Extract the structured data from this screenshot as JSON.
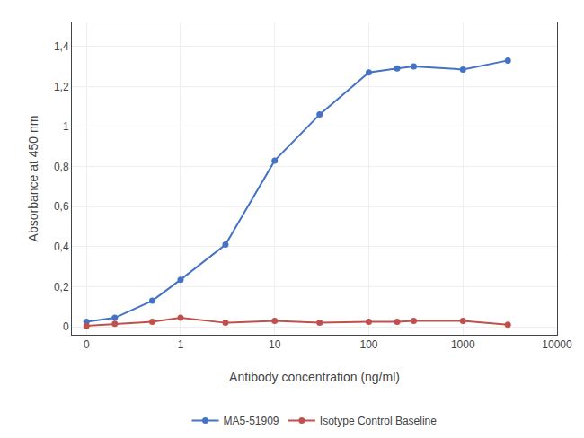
{
  "chart_data": {
    "type": "line",
    "x_label": "Antibody concentration (ng/ml)",
    "y_label": "Absorbance at 450 nm",
    "x": [
      0.1,
      0.2,
      0.5,
      1.0,
      3.0,
      10.0,
      30.0,
      100.0,
      200.0,
      300.0,
      1000.0,
      3000.0
    ],
    "series": [
      {
        "name": "MA5-51909",
        "color": "#4472C4",
        "marker": "circle",
        "line_style": "solid",
        "values": [
          0.025,
          0.045,
          0.13,
          0.235,
          0.41,
          0.83,
          1.06,
          1.27,
          1.29,
          1.3,
          1.285,
          1.33
        ]
      },
      {
        "name": "Isotype Control Baseline",
        "color": "#C0504D",
        "marker": "circle",
        "line_style": "solid",
        "values": [
          0.005,
          0.015,
          0.025,
          0.045,
          0.02,
          0.03,
          0.02,
          0.025,
          0.025,
          0.03,
          0.03,
          0.01
        ]
      }
    ],
    "log": "x",
    "xlim": [
      0.07,
      10000
    ],
    "xticks": [
      {
        "value": 0.1,
        "label": "0"
      },
      1,
      10,
      100,
      1000,
      10000
    ],
    "ylim": [
      -0.04,
      1.52
    ],
    "yticks": [
      0,
      {
        "value": 0.2,
        "label": "0,2"
      },
      {
        "value": 0.4,
        "label": "0,4"
      },
      {
        "value": 0.6,
        "label": "0,6"
      },
      {
        "value": 0.8,
        "label": "0,8"
      },
      1,
      {
        "value": 1.2,
        "label": "1,2"
      },
      {
        "value": 1.4,
        "label": "1,4"
      }
    ],
    "grid": true,
    "legend": "bottom"
  }
}
